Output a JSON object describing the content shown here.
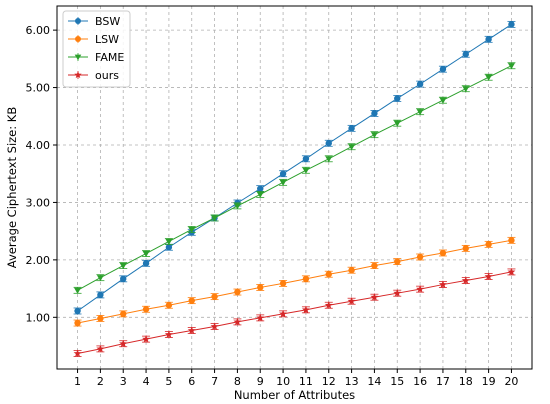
{
  "chart_data": {
    "type": "line",
    "xlabel": "Number of Attributes",
    "ylabel": "Average Ciphertext Size: KB",
    "x": [
      1,
      2,
      3,
      4,
      5,
      6,
      7,
      8,
      9,
      10,
      11,
      12,
      13,
      14,
      15,
      16,
      17,
      18,
      19,
      20
    ],
    "xlim": [
      0.1,
      20.9
    ],
    "ylim": [
      0.1,
      6.42
    ],
    "yticks": [
      "1.00",
      "2.00",
      "3.00",
      "4.00",
      "5.00",
      "6.00"
    ],
    "grid": true,
    "legend_position": "top-left",
    "series": [
      {
        "name": "BSW",
        "color": "#1f77b4",
        "marker": "circle",
        "values": [
          1.11,
          1.39,
          1.67,
          1.94,
          2.22,
          2.48,
          2.73,
          2.99,
          3.24,
          3.5,
          3.76,
          4.03,
          4.29,
          4.55,
          4.81,
          5.06,
          5.32,
          5.58,
          5.84,
          6.1
        ]
      },
      {
        "name": "LSW",
        "color": "#ff7f0e",
        "marker": "circle",
        "values": [
          0.9,
          0.98,
          1.06,
          1.14,
          1.21,
          1.29,
          1.36,
          1.44,
          1.52,
          1.59,
          1.67,
          1.75,
          1.82,
          1.9,
          1.97,
          2.05,
          2.12,
          2.2,
          2.27,
          2.34
        ]
      },
      {
        "name": "FAME",
        "color": "#2ca02c",
        "marker": "triangle-down",
        "values": [
          1.47,
          1.69,
          1.9,
          2.11,
          2.32,
          2.53,
          2.73,
          2.94,
          3.14,
          3.35,
          3.56,
          3.76,
          3.97,
          4.18,
          4.38,
          4.58,
          4.78,
          4.98,
          5.18,
          5.38
        ]
      },
      {
        "name": "ours",
        "color": "#d62728",
        "marker": "star",
        "values": [
          0.37,
          0.45,
          0.54,
          0.62,
          0.7,
          0.77,
          0.84,
          0.92,
          0.99,
          1.06,
          1.13,
          1.21,
          1.28,
          1.35,
          1.42,
          1.49,
          1.57,
          1.64,
          1.71,
          1.79
        ]
      }
    ]
  }
}
